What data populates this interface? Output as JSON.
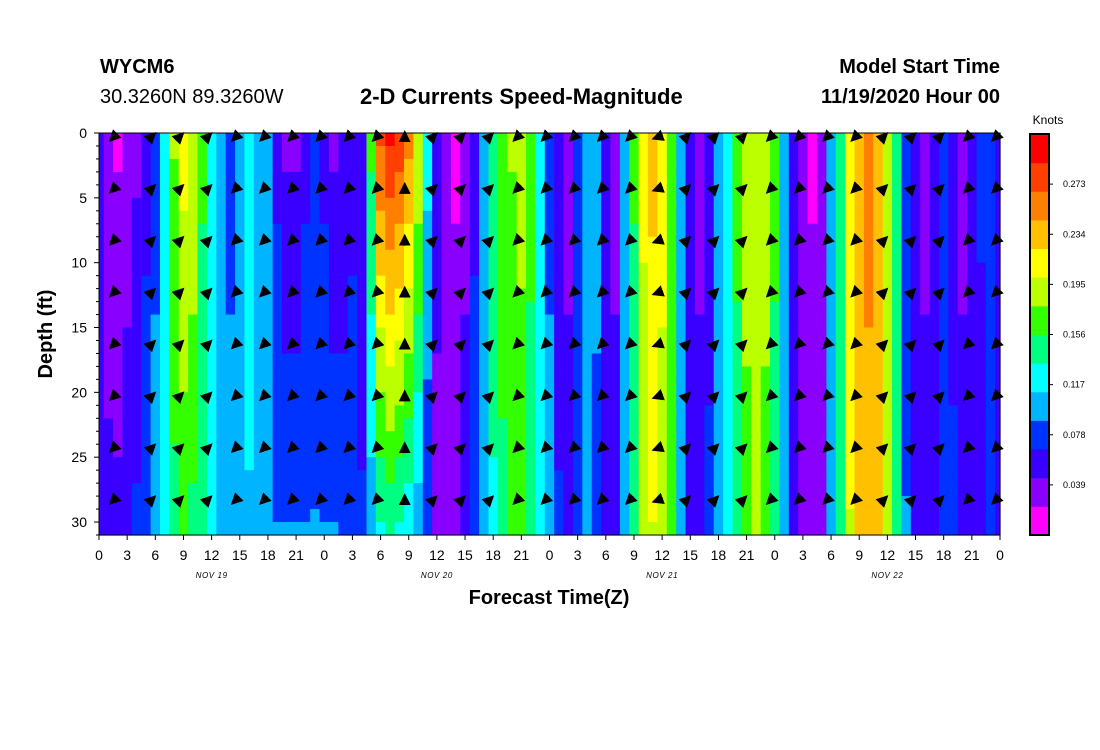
{
  "header": {
    "station": "WYCM6",
    "coords": "30.3260N 89.3260W",
    "title": "2-D Currents Speed-Magnitude",
    "model_label": "Model Start Time",
    "model_time": "11/19/2020 Hour 00"
  },
  "chart_data": {
    "type": "heatmap",
    "title": "2-D Currents Speed-Magnitude",
    "xlabel": "Forecast Time(Z)",
    "ylabel": "Depth (ft)",
    "x_range_hours": [
      0,
      96
    ],
    "x_tick_labels": [
      "0",
      "3",
      "6",
      "9",
      "12",
      "15",
      "18",
      "21",
      "0",
      "3",
      "6",
      "9",
      "12",
      "15",
      "18",
      "21",
      "0",
      "3",
      "6",
      "9",
      "12",
      "15",
      "18",
      "21",
      "0",
      "3",
      "6",
      "9",
      "12",
      "15",
      "18",
      "21",
      "0"
    ],
    "day_labels": [
      "NOV 19",
      "NOV 20",
      "NOV 21",
      "NOV 22"
    ],
    "y_range_ft": [
      0,
      31
    ],
    "y_ticks": [
      0,
      5,
      10,
      15,
      20,
      25,
      30
    ],
    "colorbar": {
      "units": "Knots",
      "range": [
        0.0,
        0.312
      ],
      "tick_values": [
        0.273,
        0.234,
        0.195,
        0.156,
        0.117,
        0.078,
        0.039
      ],
      "tick_labels": [
        "0.273",
        "0.234",
        "0.195",
        "0.156",
        "0.117",
        "0.078",
        "0.039"
      ],
      "colors": [
        "#ff00ff",
        "#8a00ff",
        "#3a00ff",
        "#0033ff",
        "#00b4ff",
        "#00ffff",
        "#00ff80",
        "#33ff00",
        "#bbff00",
        "#ffff00",
        "#ffc000",
        "#ff8000",
        "#ff4000",
        "#ff0000"
      ]
    },
    "speed_profile_hours": [
      0,
      1,
      2,
      3,
      4,
      5,
      6,
      7,
      8,
      9,
      10,
      11,
      12,
      13,
      14,
      15,
      16,
      17,
      18,
      19,
      20,
      21,
      22,
      23,
      24,
      25,
      26,
      27,
      28,
      29,
      30,
      31,
      32,
      33,
      34,
      35,
      36,
      37,
      38,
      39,
      40,
      41,
      42,
      43,
      44,
      45,
      46,
      47,
      48,
      49,
      50,
      51,
      52,
      53,
      54,
      55,
      56,
      57,
      58,
      59,
      60,
      61,
      62,
      63,
      64,
      65,
      66,
      67,
      68,
      69,
      70,
      71,
      72,
      73,
      74,
      75,
      76,
      77,
      78,
      79,
      80,
      81,
      82,
      83,
      84,
      85,
      86,
      87,
      88,
      89,
      90,
      91,
      92,
      93,
      94,
      95,
      96
    ],
    "speed_surface_knots": [
      0.06,
      0.03,
      0.02,
      0.03,
      0.04,
      0.06,
      0.08,
      0.13,
      0.18,
      0.21,
      0.2,
      0.16,
      0.13,
      0.1,
      0.08,
      0.1,
      0.12,
      0.11,
      0.09,
      0.06,
      0.04,
      0.04,
      0.06,
      0.07,
      0.06,
      0.04,
      0.05,
      0.06,
      0.05,
      0.16,
      0.27,
      0.29,
      0.28,
      0.25,
      0.2,
      0.12,
      0.05,
      0.03,
      0.02,
      0.04,
      0.06,
      0.1,
      0.15,
      0.17,
      0.18,
      0.19,
      0.16,
      0.12,
      0.08,
      0.05,
      0.04,
      0.08,
      0.11,
      0.1,
      0.05,
      0.04,
      0.09,
      0.16,
      0.21,
      0.23,
      0.21,
      0.17,
      0.11,
      0.06,
      0.04,
      0.06,
      0.11,
      0.13,
      0.16,
      0.19,
      0.2,
      0.19,
      0.16,
      0.1,
      0.05,
      0.03,
      0.02,
      0.04,
      0.1,
      0.15,
      0.21,
      0.24,
      0.25,
      0.24,
      0.2,
      0.14,
      0.08,
      0.05,
      0.04,
      0.06,
      0.08,
      0.06,
      0.04,
      0.05,
      0.07,
      0.08,
      0.06
    ],
    "speed_bottom_knots": [
      0.06,
      0.05,
      0.05,
      0.06,
      0.07,
      0.08,
      0.1,
      0.13,
      0.15,
      0.16,
      0.15,
      0.14,
      0.12,
      0.11,
      0.1,
      0.1,
      0.11,
      0.11,
      0.1,
      0.09,
      0.09,
      0.09,
      0.09,
      0.09,
      0.09,
      0.09,
      0.08,
      0.08,
      0.07,
      0.1,
      0.13,
      0.14,
      0.13,
      0.12,
      0.1,
      0.07,
      0.04,
      0.03,
      0.03,
      0.05,
      0.08,
      0.11,
      0.13,
      0.15,
      0.16,
      0.16,
      0.15,
      0.13,
      0.1,
      0.07,
      0.05,
      0.07,
      0.09,
      0.08,
      0.05,
      0.05,
      0.09,
      0.14,
      0.18,
      0.2,
      0.19,
      0.16,
      0.11,
      0.06,
      0.05,
      0.07,
      0.11,
      0.13,
      0.15,
      0.17,
      0.18,
      0.17,
      0.15,
      0.1,
      0.06,
      0.04,
      0.03,
      0.04,
      0.09,
      0.14,
      0.2,
      0.23,
      0.24,
      0.23,
      0.19,
      0.14,
      0.09,
      0.06,
      0.05,
      0.06,
      0.08,
      0.07,
      0.05,
      0.05,
      0.06,
      0.07,
      0.06
    ],
    "arrow_depths_ft": [
      0,
      4,
      8,
      12,
      16,
      20,
      24,
      28
    ],
    "arrow_hours": [
      2,
      6,
      9,
      12,
      15,
      18,
      21,
      24,
      27,
      30,
      33,
      36,
      39,
      42,
      45,
      48,
      51,
      54,
      57,
      60,
      63,
      66,
      69,
      72,
      75,
      78,
      81,
      84,
      87,
      90,
      93,
      96
    ],
    "arrow_direction_deg": [
      225,
      45,
      45,
      45,
      225,
      225,
      225,
      225,
      225,
      225,
      90,
      45,
      45,
      45,
      225,
      225,
      225,
      225,
      225,
      200,
      45,
      45,
      45,
      225,
      225,
      225,
      225,
      45,
      45,
      45,
      225,
      225
    ]
  }
}
